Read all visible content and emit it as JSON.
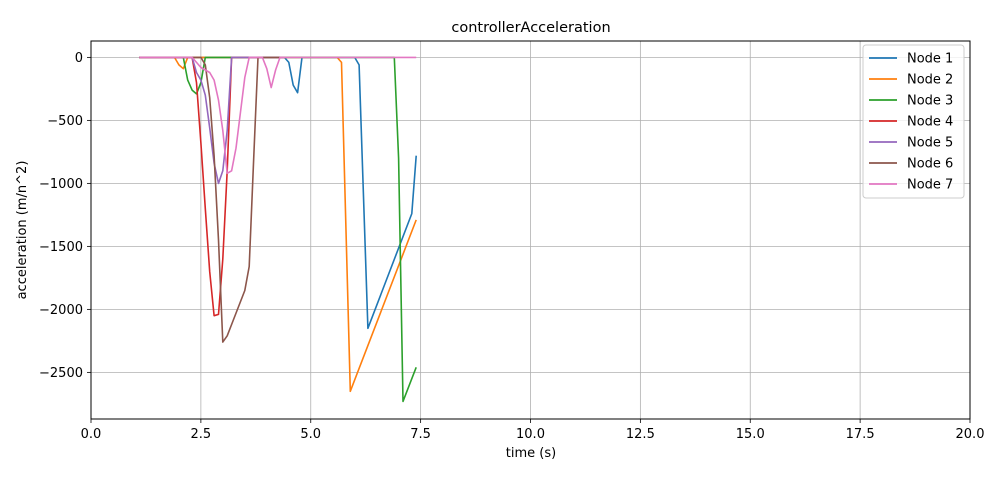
{
  "chart_data": {
    "type": "line",
    "title": "controllerAcceleration",
    "xlabel": "time (s)",
    "ylabel": "acceleration (m/n^2)",
    "xlim": [
      0,
      20
    ],
    "ylim": [
      -2870,
      130
    ],
    "xticks": [
      0,
      2.5,
      5,
      7.5,
      10,
      12.5,
      15,
      17.5,
      20
    ],
    "xtick_labels": [
      "0.0",
      "2.5",
      "5.0",
      "7.5",
      "10.0",
      "12.5",
      "15.0",
      "17.5",
      "20.0"
    ],
    "yticks": [
      0,
      -500,
      -1000,
      -1500,
      -2000,
      -2500
    ],
    "ytick_labels": [
      "0",
      "−500",
      "−1000",
      "−1500",
      "−2000",
      "−2500"
    ],
    "grid": true,
    "legend_position": "top-right",
    "series": [
      {
        "name": "Node 1",
        "color": "#1f77b4",
        "x": [
          1.1,
          4.4,
          4.5,
          4.6,
          4.7,
          4.8,
          6.0,
          6.1,
          6.3,
          7.3,
          7.4
        ],
        "y": [
          0,
          0,
          -40,
          -220,
          -280,
          0,
          0,
          -60,
          -2150,
          -1240,
          -780
        ]
      },
      {
        "name": "Node 2",
        "color": "#ff7f0e",
        "x": [
          1.1,
          1.9,
          2.0,
          2.1,
          2.2,
          5.6,
          5.7,
          5.9,
          7.4
        ],
        "y": [
          0,
          0,
          -60,
          -90,
          0,
          0,
          -40,
          -2650,
          -1290
        ]
      },
      {
        "name": "Node 3",
        "color": "#2ca02c",
        "x": [
          1.1,
          2.1,
          2.2,
          2.3,
          2.4,
          2.5,
          2.6,
          6.9,
          7.0,
          7.1,
          7.4
        ],
        "y": [
          0,
          0,
          -180,
          -260,
          -290,
          -200,
          0,
          0,
          -800,
          -2730,
          -2460
        ]
      },
      {
        "name": "Node 4",
        "color": "#d62728",
        "x": [
          1.1,
          2.3,
          2.4,
          2.5,
          2.6,
          2.7,
          2.8,
          2.9,
          3.0,
          3.1,
          3.2,
          4.4
        ],
        "y": [
          0,
          0,
          -200,
          -680,
          -1200,
          -1700,
          -2050,
          -2040,
          -1600,
          -900,
          0,
          0
        ]
      },
      {
        "name": "Node 5",
        "color": "#9467bd",
        "x": [
          1.1,
          2.3,
          2.4,
          2.5,
          2.6,
          2.7,
          2.8,
          2.9,
          3.0,
          3.1,
          3.2,
          4.4
        ],
        "y": [
          0,
          0,
          -120,
          -180,
          -300,
          -560,
          -840,
          -1000,
          -900,
          -580,
          0,
          0
        ]
      },
      {
        "name": "Node 6",
        "color": "#8c564b",
        "x": [
          1.1,
          2.5,
          2.6,
          2.7,
          2.8,
          2.9,
          3.0,
          3.1,
          3.2,
          3.5,
          3.6,
          3.7,
          3.8,
          3.9,
          4.4
        ],
        "y": [
          0,
          0,
          -60,
          -320,
          -780,
          -1450,
          -2260,
          -2210,
          -2120,
          -1850,
          -1660,
          -820,
          0,
          0,
          0
        ]
      },
      {
        "name": "Node 7",
        "color": "#e377c2",
        "x": [
          1.1,
          2.3,
          2.4,
          2.5,
          2.6,
          2.7,
          2.8,
          2.9,
          3.0,
          3.1,
          3.2,
          3.3,
          3.4,
          3.5,
          3.6,
          3.9,
          4.0,
          4.1,
          4.2,
          4.3,
          7.4
        ],
        "y": [
          0,
          0,
          -40,
          -80,
          -100,
          -120,
          -180,
          -340,
          -580,
          -920,
          -900,
          -720,
          -440,
          -160,
          0,
          0,
          -90,
          -240,
          -100,
          0,
          0
        ]
      }
    ]
  }
}
